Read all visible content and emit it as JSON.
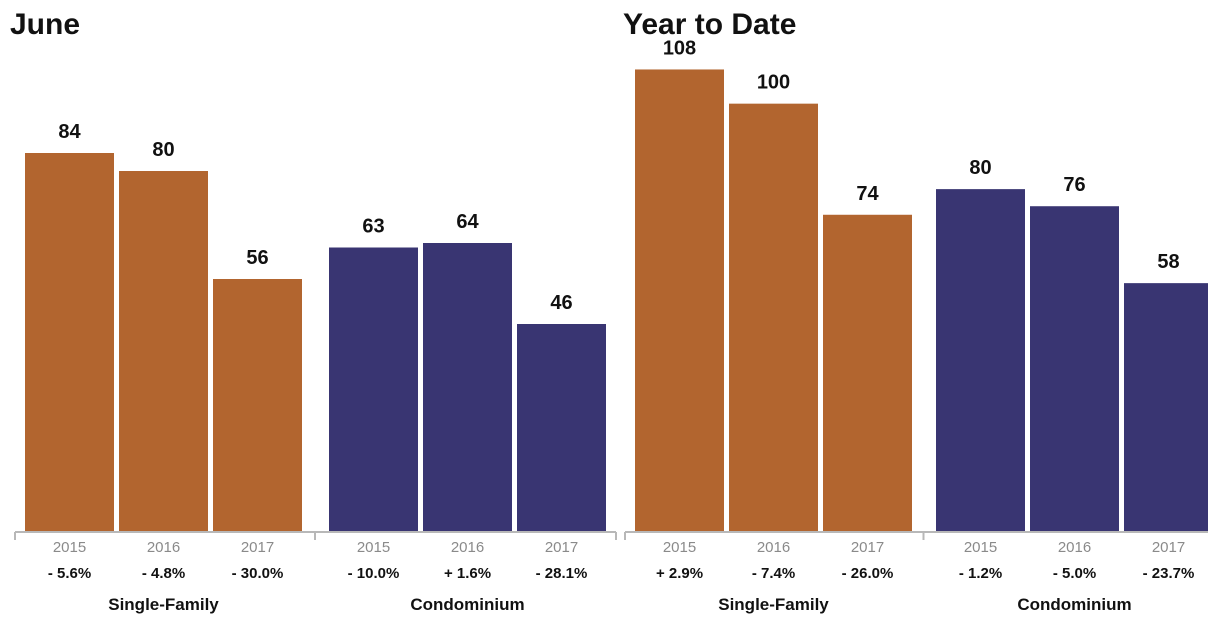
{
  "colors": {
    "single_family": "#b2652f",
    "condominium": "#393572"
  },
  "chart_data": [
    {
      "type": "bar",
      "title": "June",
      "ylim": [
        0,
        100
      ],
      "groups": [
        {
          "name": "Single-Family",
          "color_key": "single_family",
          "categories": [
            "2015",
            "2016",
            "2017"
          ],
          "values": [
            84,
            80,
            56
          ],
          "changes": [
            "- 5.6%",
            "- 4.8%",
            "- 30.0%"
          ]
        },
        {
          "name": "Condominium",
          "color_key": "condominium",
          "categories": [
            "2015",
            "2016",
            "2017"
          ],
          "values": [
            63,
            64,
            46
          ],
          "changes": [
            "- 10.0%",
            "+ 1.6%",
            "- 28.1%"
          ]
        }
      ]
    },
    {
      "type": "bar",
      "title": "Year to Date",
      "ylim": [
        0,
        128
      ],
      "groups": [
        {
          "name": "Single-Family",
          "color_key": "single_family",
          "categories": [
            "2015",
            "2016",
            "2017"
          ],
          "values": [
            108,
            100,
            74
          ],
          "changes": [
            "+ 2.9%",
            "- 7.4%",
            "- 26.0%"
          ]
        },
        {
          "name": "Condominium",
          "color_key": "condominium",
          "categories": [
            "2015",
            "2016",
            "2017"
          ],
          "values": [
            80,
            76,
            58
          ],
          "changes": [
            "- 1.2%",
            "- 5.0%",
            "- 23.7%"
          ]
        }
      ]
    }
  ]
}
